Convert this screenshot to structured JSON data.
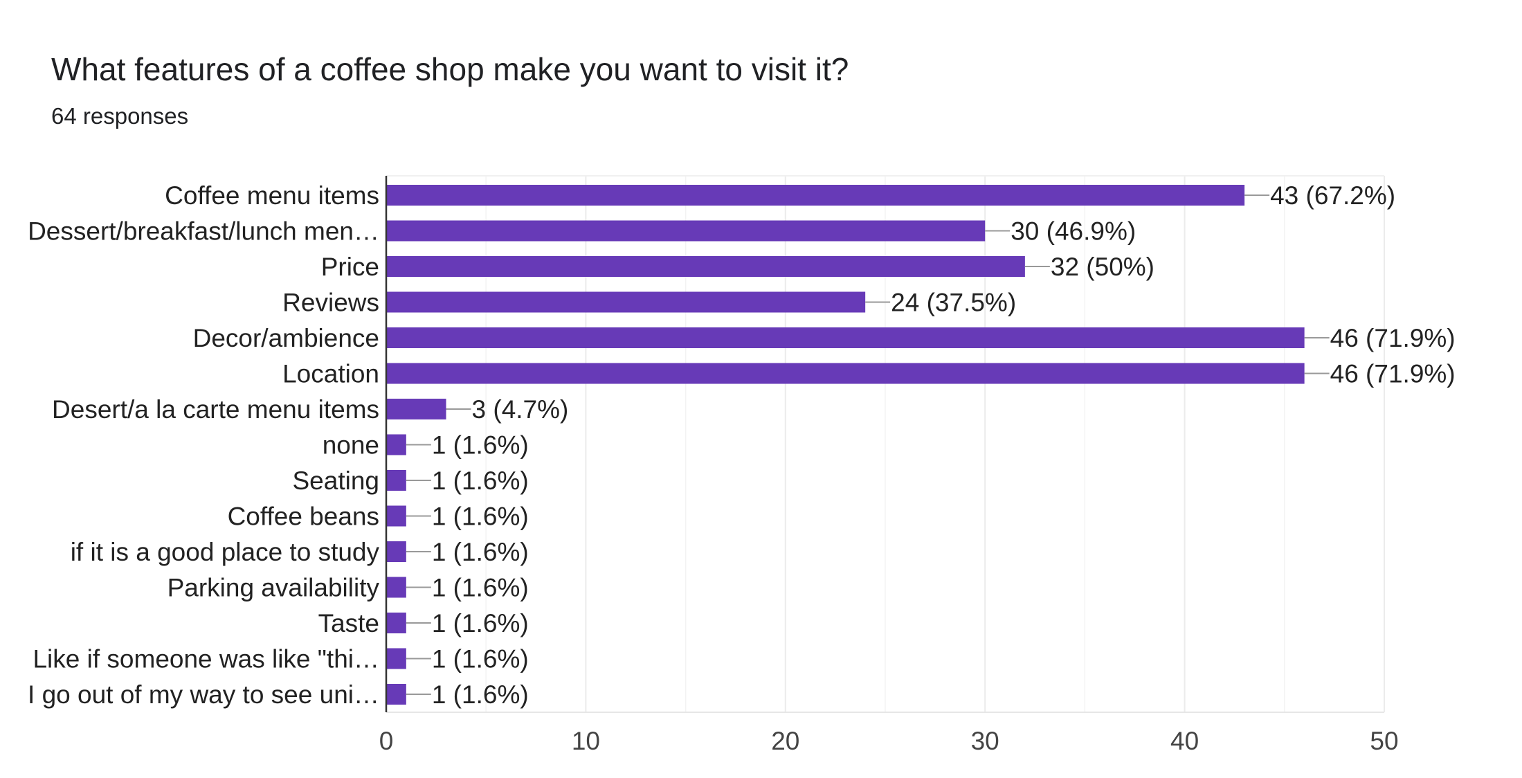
{
  "question": {
    "title": "What features of a coffee shop make you want to visit it?",
    "responses": "64 responses"
  },
  "chart_data": {
    "type": "bar",
    "orientation": "horizontal",
    "title": "What features of a coffee shop make you want to visit it?",
    "subtitle": "64 responses",
    "categories": [
      "Coffee menu items",
      "Dessert/breakfast/lunch men…",
      "Price",
      "Reviews",
      "Decor/ambience",
      "Location",
      "Desert/a la carte menu items",
      "none",
      "Seating",
      "Coffee beans",
      "if it is a good place to study",
      "Parking availability",
      "Taste",
      "Like if someone was like \"thi…",
      "I go out of my way to see uni…"
    ],
    "values": [
      43,
      30,
      32,
      24,
      46,
      46,
      3,
      1,
      1,
      1,
      1,
      1,
      1,
      1,
      1
    ],
    "data_labels": [
      "43 (67.2%)",
      "30 (46.9%)",
      "32 (50%)",
      "24 (37.5%)",
      "46 (71.9%)",
      "46 (71.9%)",
      "3 (4.7%)",
      "1 (1.6%)",
      "1 (1.6%)",
      "1 (1.6%)",
      "1 (1.6%)",
      "1 (1.6%)",
      "1 (1.6%)",
      "1 (1.6%)",
      "1 (1.6%)"
    ],
    "xlim": [
      0,
      50
    ],
    "xticks": [
      0,
      10,
      20,
      30,
      40,
      50
    ],
    "minor_gridlines": [
      5,
      15,
      25,
      35,
      45
    ],
    "grid": true,
    "legend": "none",
    "colors": {
      "bar": "#673ab7",
      "grid": "#ebebeb",
      "axis": "#333333",
      "leader": "#999999"
    }
  }
}
